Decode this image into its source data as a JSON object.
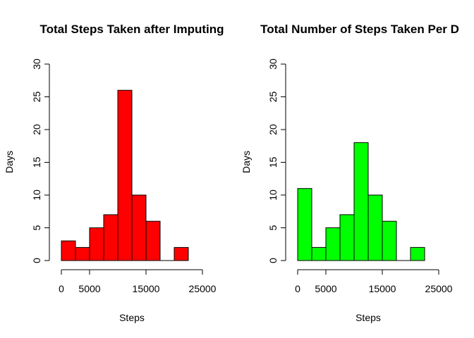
{
  "chart_data": [
    {
      "type": "bar",
      "title": "Total Steps Taken after Imputing",
      "xlabel": "Steps",
      "ylabel": "Days",
      "bar_color": "#FF0000",
      "bin_edges": [
        0,
        2500,
        5000,
        7500,
        10000,
        12500,
        15000,
        17500,
        20000,
        22500
      ],
      "values": [
        3,
        2,
        5,
        7,
        26,
        10,
        6,
        0,
        2
      ],
      "xlim": [
        0,
        25000
      ],
      "ylim": [
        0,
        30
      ],
      "xticks": [
        0,
        5000,
        15000,
        25000
      ],
      "yticks": [
        0,
        5,
        10,
        15,
        20,
        25,
        30
      ],
      "grid": false
    },
    {
      "type": "bar",
      "title": "Total Number of Steps Taken Per D",
      "xlabel": "Steps",
      "ylabel": "Days",
      "bar_color": "#00FF00",
      "bin_edges": [
        0,
        2500,
        5000,
        7500,
        10000,
        12500,
        15000,
        17500,
        20000,
        22500
      ],
      "values": [
        11,
        2,
        5,
        7,
        18,
        10,
        6,
        0,
        2
      ],
      "xlim": [
        0,
        25000
      ],
      "ylim": [
        0,
        30
      ],
      "xticks": [
        0,
        5000,
        15000,
        25000
      ],
      "yticks": [
        0,
        5,
        10,
        15,
        20,
        25,
        30
      ],
      "grid": false
    }
  ]
}
